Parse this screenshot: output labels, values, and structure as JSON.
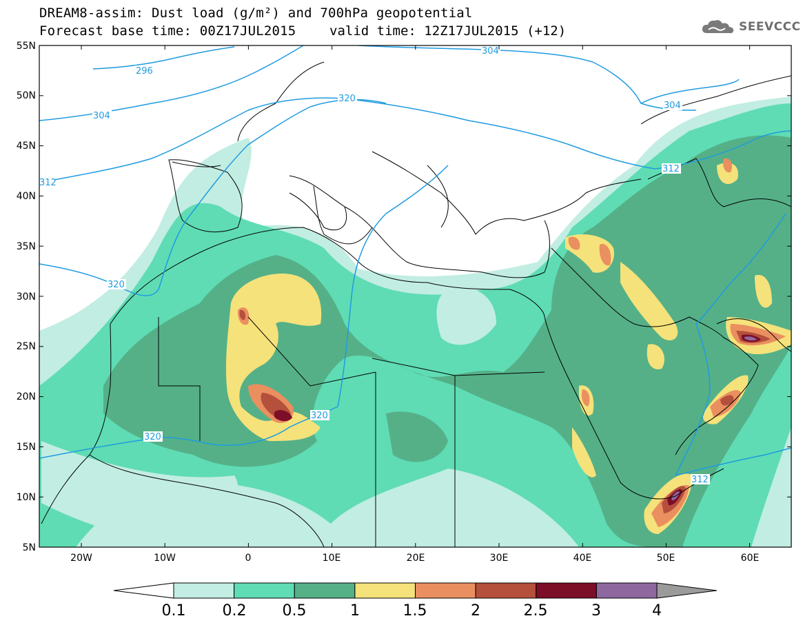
{
  "header": {
    "title_line1": "DREAM8-assim: Dust load (g/m²) and 700hPa geopotential",
    "base_time": "Forecast base time: 00Z17JUL2015",
    "valid_time": "valid time: 12Z17JUL2015 (+12)"
  },
  "logo": {
    "text": "SEEVCCC",
    "icon": "cloud-icon"
  },
  "map": {
    "lat_labels": [
      "55N",
      "50N",
      "45N",
      "40N",
      "35N",
      "30N",
      "25N",
      "20N",
      "15N",
      "10N",
      "5N"
    ],
    "lon_labels": [
      "20W",
      "10W",
      "0",
      "10E",
      "20E",
      "30E",
      "40E",
      "50E",
      "60E"
    ],
    "contour_labels": [
      "296",
      "304",
      "304",
      "304",
      "312",
      "312",
      "320",
      "320",
      "320",
      "320",
      "312"
    ]
  },
  "legend": {
    "labels": [
      "0.1",
      "0.2",
      "0.5",
      "1",
      "1.5",
      "2",
      "2.5",
      "3",
      "4"
    ],
    "colors": [
      "#c2ede2",
      "#5fdcb4",
      "#55b088",
      "#f5e27a",
      "#ea8f60",
      "#b5503c",
      "#7d0e28",
      "#8f68a0",
      "#9b9b9b"
    ]
  },
  "colors": {
    "contour": "#1e9be0",
    "coast": "#000000"
  }
}
